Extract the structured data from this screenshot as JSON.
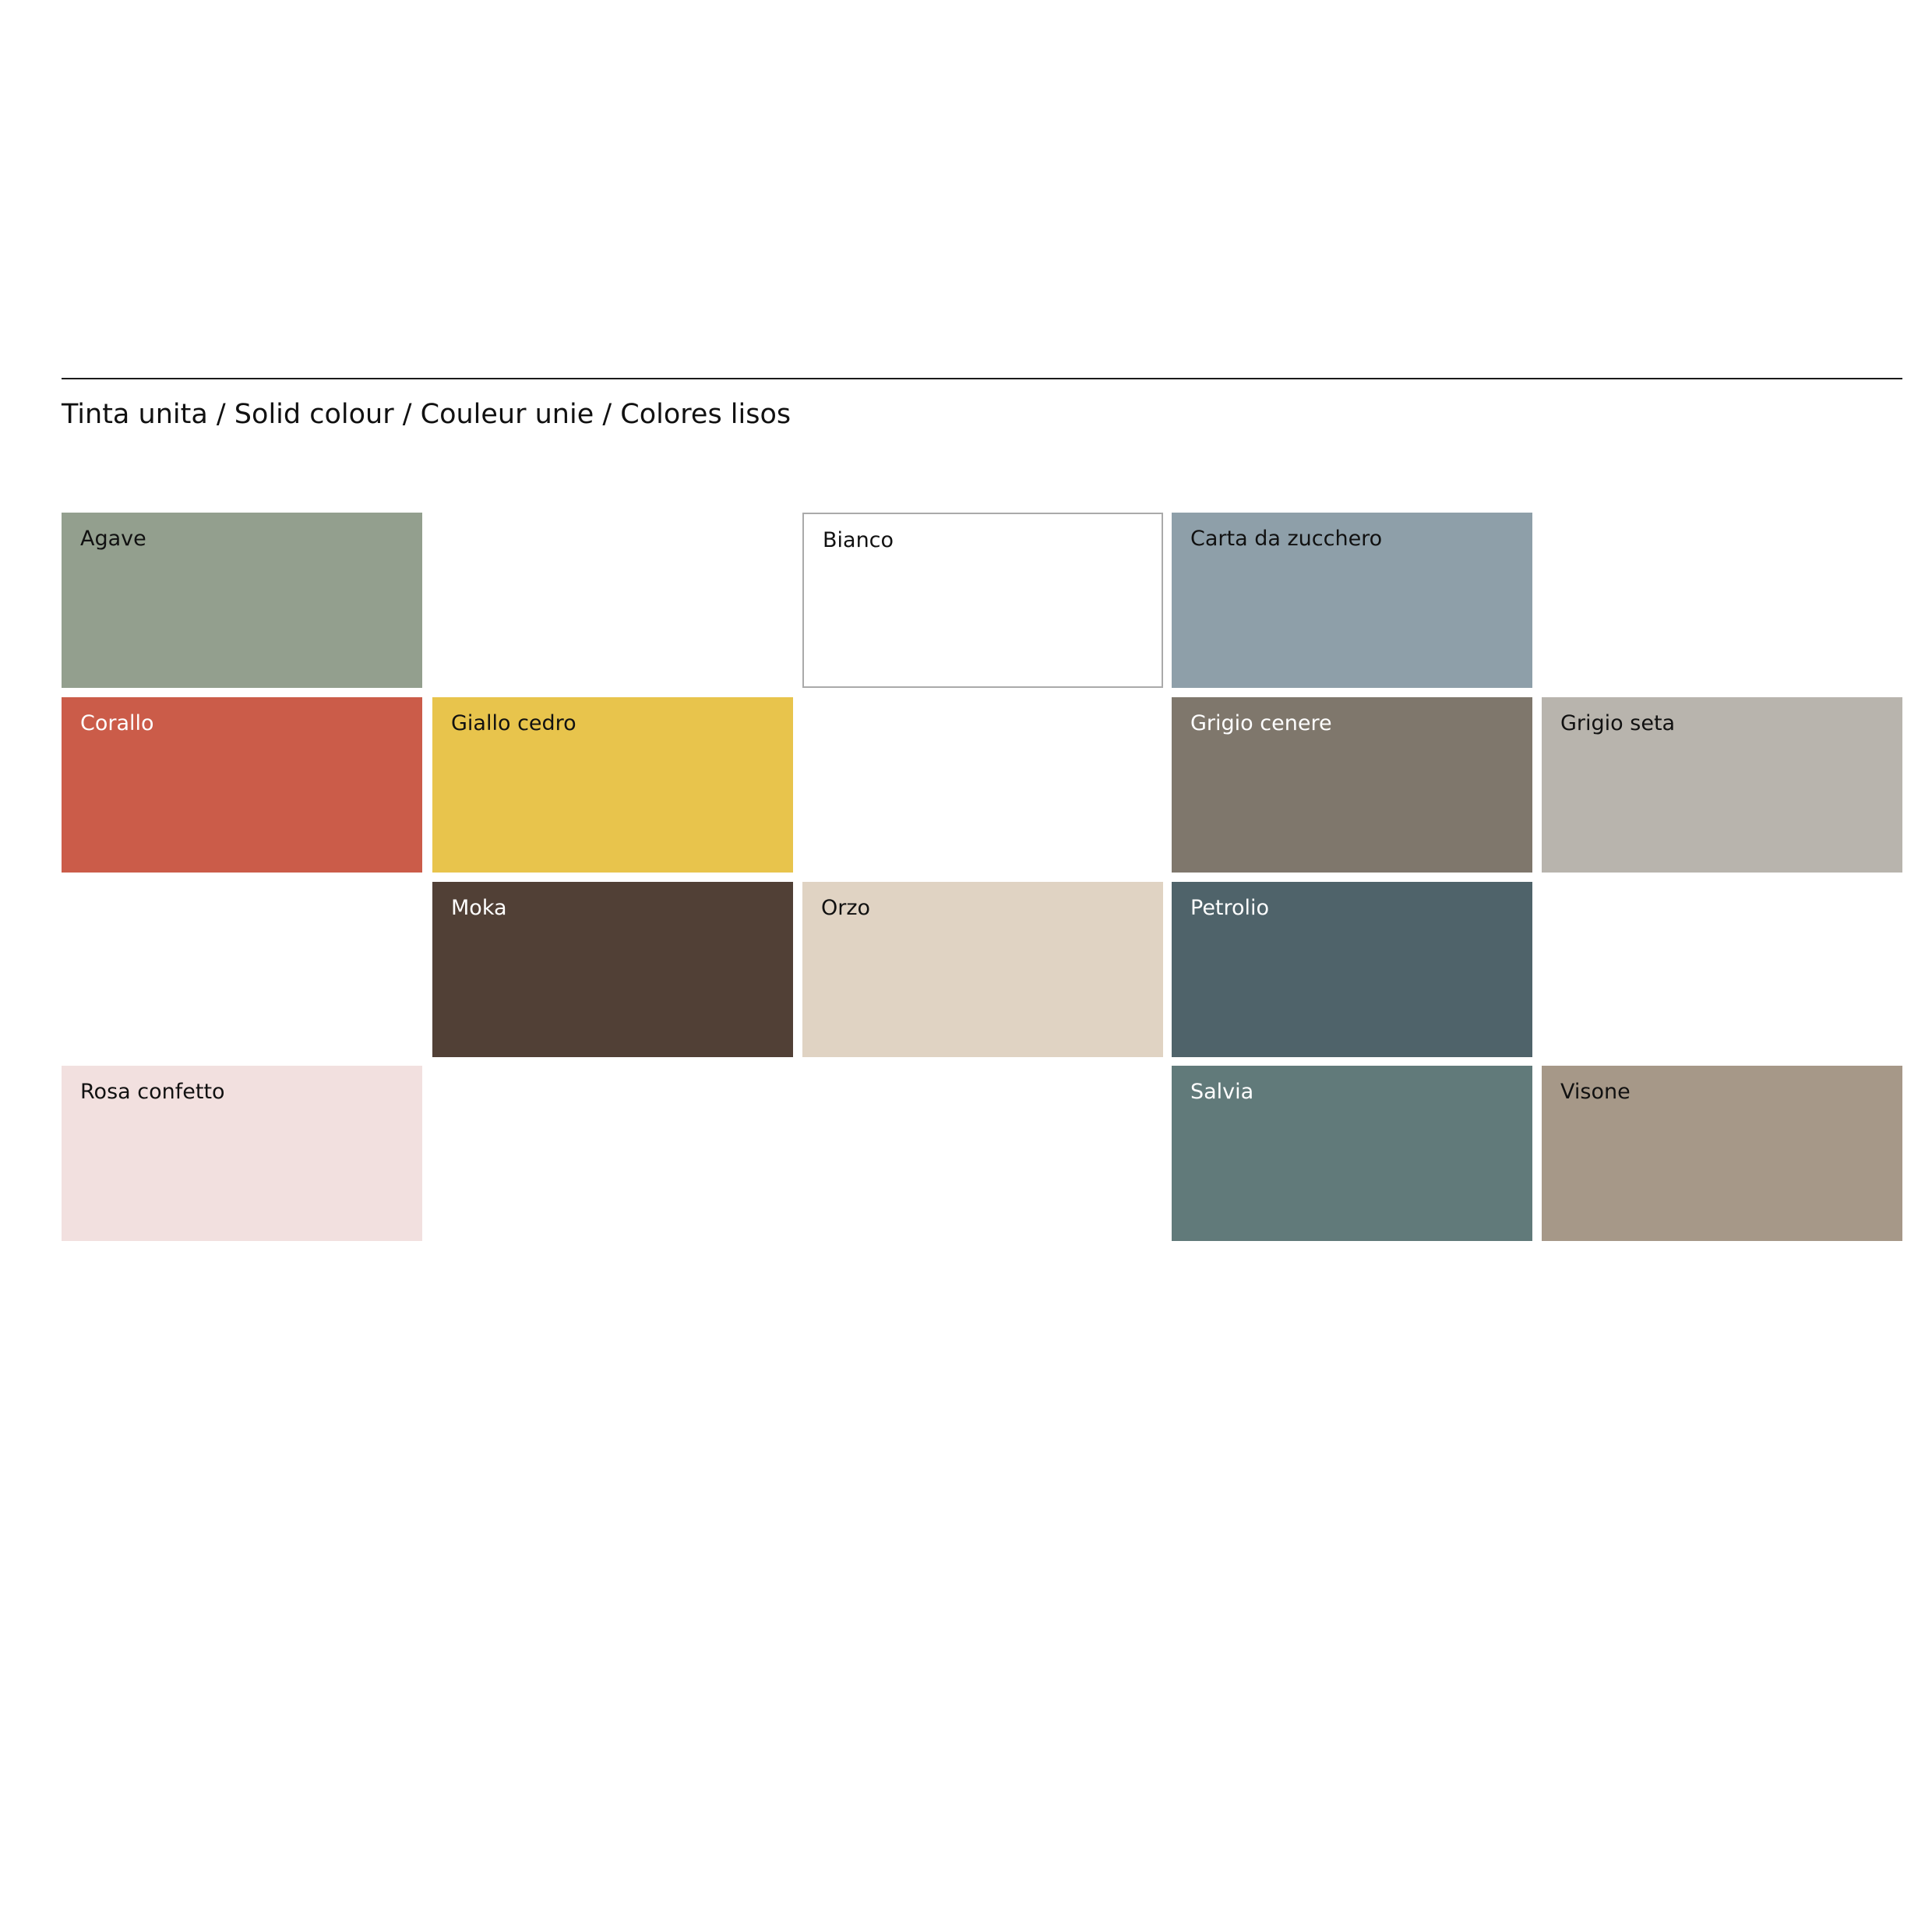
{
  "title": "Tinta unita / Solid colour / Couleur unie / Colores lisos",
  "swatches": [
    {
      "name": "Agave",
      "color": "#939f8e"
    },
    {
      "name": "Bianco",
      "color": "#ffffff"
    },
    {
      "name": "Carta da zucchero",
      "color": "#8e9fa9"
    },
    {
      "name": "Corallo",
      "color": "#cb5c49"
    },
    {
      "name": "Giallo cedro",
      "color": "#e8c44c"
    },
    {
      "name": "Grigio cenere",
      "color": "#7f776c"
    },
    {
      "name": "Grigio seta",
      "color": "#b8b4ad"
    },
    {
      "name": "Moka",
      "color": "#514036"
    },
    {
      "name": "Orzo",
      "color": "#e0d3c3"
    },
    {
      "name": "Petrolio",
      "color": "#4f636a"
    },
    {
      "name": "Rosa confetto",
      "color": "#f2e0df"
    },
    {
      "name": "Salvia",
      "color": "#617a7a"
    },
    {
      "name": "Visone",
      "color": "#a69888"
    }
  ]
}
